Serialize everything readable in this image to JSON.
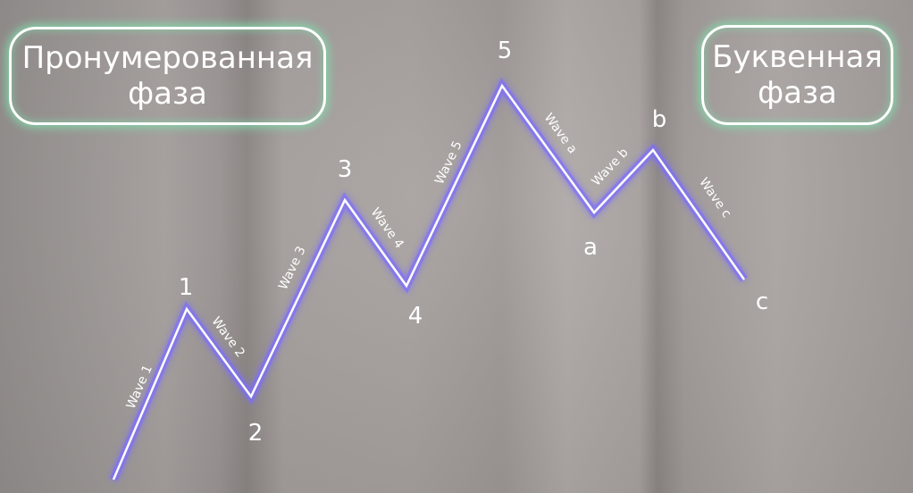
{
  "phases": {
    "numbered": [
      "Пронумерованная",
      "фаза"
    ],
    "letter": [
      "Буквенная",
      "фаза"
    ]
  },
  "points": [
    "1",
    "2",
    "3",
    "4",
    "5",
    "a",
    "b",
    "c"
  ],
  "waves": [
    "Wave 1",
    "Wave 2",
    "Wave 3",
    "Wave 4",
    "Wave 5",
    "Wave a",
    "Wave b",
    "Wave c"
  ],
  "colors": {
    "line": "#ffffff",
    "line_glow": "#7b6cff",
    "box_glow": "#82dcaa",
    "text": "#ffffff"
  }
}
